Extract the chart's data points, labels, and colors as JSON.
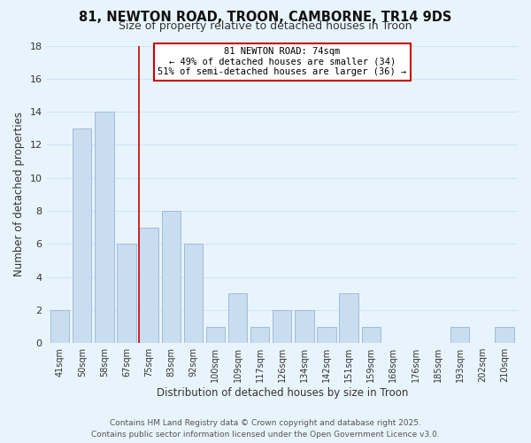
{
  "title_line1": "81, NEWTON ROAD, TROON, CAMBORNE, TR14 9DS",
  "title_line2": "Size of property relative to detached houses in Troon",
  "xlabel": "Distribution of detached houses by size in Troon",
  "ylabel": "Number of detached properties",
  "categories": [
    "41sqm",
    "50sqm",
    "58sqm",
    "67sqm",
    "75sqm",
    "83sqm",
    "92sqm",
    "100sqm",
    "109sqm",
    "117sqm",
    "126sqm",
    "134sqm",
    "142sqm",
    "151sqm",
    "159sqm",
    "168sqm",
    "176sqm",
    "185sqm",
    "193sqm",
    "202sqm",
    "210sqm"
  ],
  "bar_heights": [
    2,
    13,
    14,
    6,
    7,
    8,
    6,
    1,
    3,
    1,
    2,
    2,
    1,
    3,
    1,
    0,
    0,
    0,
    1,
    0,
    1
  ],
  "bar_color": "#c9ddf0",
  "bar_edge_color": "#a0bcd8",
  "grid_color": "#d0e4f5",
  "background_color": "#e8f4fc",
  "red_line_index": 4,
  "red_line_label": "81 NEWTON ROAD: 74sqm",
  "annotation_line2": "← 49% of detached houses are smaller (34)",
  "annotation_line3": "51% of semi-detached houses are larger (36) →",
  "annotation_box_color": "#ffffff",
  "annotation_box_edge": "#cc0000",
  "red_line_color": "#cc0000",
  "ylim": [
    0,
    18
  ],
  "yticks": [
    0,
    2,
    4,
    6,
    8,
    10,
    12,
    14,
    16,
    18
  ],
  "footer_line1": "Contains HM Land Registry data © Crown copyright and database right 2025.",
  "footer_line2": "Contains public sector information licensed under the Open Government Licence v3.0.",
  "title_fontsize": 10.5,
  "subtitle_fontsize": 9,
  "tick_fontsize": 7,
  "label_fontsize": 8.5,
  "footer_fontsize": 6.5,
  "annotation_fontsize": 7.5
}
